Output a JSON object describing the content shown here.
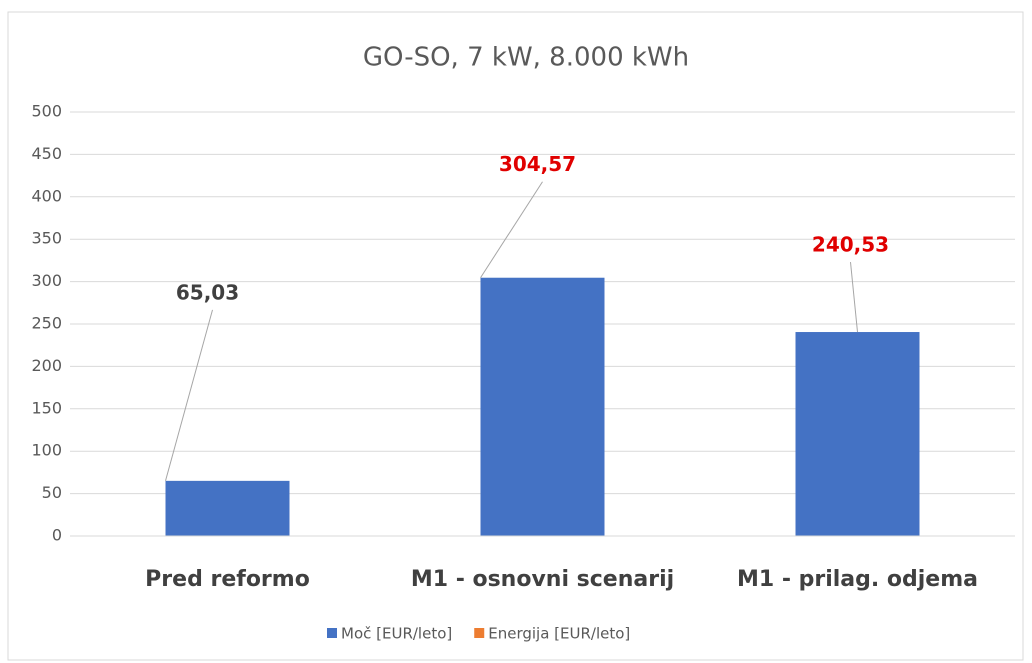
{
  "chart_data": {
    "type": "bar",
    "title": "GO-SO, 7 kW, 8.000 kWh",
    "categories": [
      "Pred reformo",
      "M1 - osnovni scenarij",
      "M1 - prilag. odjema"
    ],
    "series": [
      {
        "name": "Moč [EUR/leto]",
        "color": "#4472c4",
        "values": [
          65.03,
          304.57,
          240.53
        ],
        "value_labels": [
          "65,03",
          "304,57",
          "240,53"
        ],
        "value_label_colors": [
          "#404040",
          "#e00000",
          "#e00000"
        ]
      },
      {
        "name": "Energija [EUR/leto]",
        "color": "#ed7d31",
        "values": [
          null,
          null,
          null
        ]
      }
    ],
    "ylim": [
      0,
      500
    ],
    "yticks": [
      0,
      50,
      100,
      150,
      200,
      250,
      300,
      350,
      400,
      450,
      500
    ],
    "grid": true,
    "legend": "bottom"
  }
}
